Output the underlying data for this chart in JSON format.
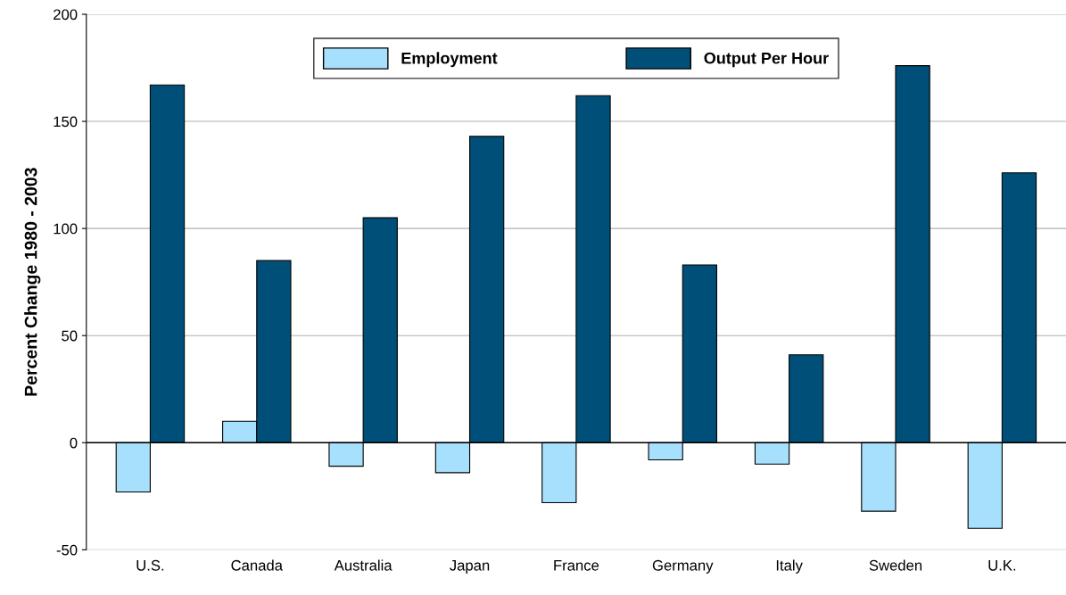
{
  "chart_data": {
    "type": "bar",
    "ylabel": "Percent Change 1980 - 2003",
    "categories": [
      "U.S.",
      "Canada",
      "Australia",
      "Japan",
      "France",
      "Germany",
      "Italy",
      "Sweden",
      "U.K."
    ],
    "series": [
      {
        "name": "Employment",
        "color": "#a6e0fc",
        "values": [
          -23,
          10,
          -11,
          -14,
          -28,
          -8,
          -10,
          -32,
          -40
        ]
      },
      {
        "name": "Output Per Hour",
        "color": "#004f78",
        "values": [
          167,
          85,
          105,
          143,
          162,
          83,
          41,
          176,
          126
        ]
      }
    ],
    "ylim": [
      -50,
      200
    ],
    "yticks": [
      -50,
      0,
      50,
      100,
      150,
      200
    ],
    "grid": "y",
    "legend": "top"
  }
}
